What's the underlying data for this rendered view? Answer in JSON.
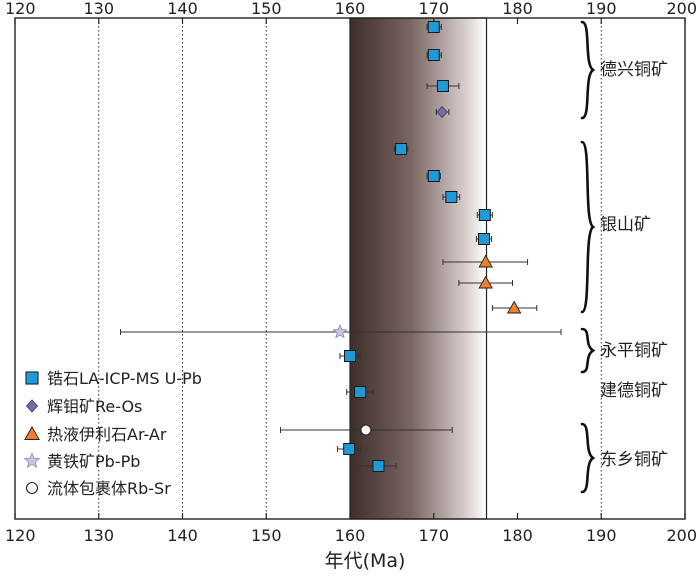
{
  "chart_data": {
    "type": "scatter",
    "title": "",
    "xlabel": "年代(Ma)",
    "ylabel": "",
    "xlim": [
      120,
      200
    ],
    "xticks": [
      120,
      130,
      140,
      150,
      160,
      170,
      180,
      190,
      200
    ],
    "grid": "vertical dotted at 130, 140, 150, 190",
    "highlight_band": {
      "x0": 160,
      "x1": 176.3
    },
    "colors": {
      "zircon": "#1f9ad6",
      "molybdenite": "#7b68a8",
      "sericite": "#f07f2d",
      "pyrite": "#c9c6e6",
      "band_dark": "#3e2e2a",
      "band_light": "#ffffff"
    },
    "legend": {
      "placement": "bottom-left",
      "entries": [
        {
          "label": "锆石LA-ICP-MS U-Pb",
          "marker": "square",
          "color": "#1f9ad6"
        },
        {
          "label": "辉钼矿Re-Os",
          "marker": "diamond",
          "color": "#7b68a8"
        },
        {
          "label": "热液伊利石Ar-Ar",
          "marker": "triangle",
          "color": "#f07f2d"
        },
        {
          "label": "黄铁矿Pb-Pb",
          "marker": "star",
          "color": "#c9c6e6"
        },
        {
          "label": "流体包裹体Rb-Sr",
          "marker": "circle",
          "color": "#ffffff"
        }
      ]
    },
    "groups": [
      {
        "label": "德兴铜矿"
      },
      {
        "label": "银山矿"
      },
      {
        "label": "永平铜矿"
      },
      {
        "label": "建德铜矿"
      },
      {
        "label": "东乡铜矿"
      }
    ],
    "points": [
      {
        "group": "德兴铜矿",
        "method": "锆石LA-ICP-MS U-Pb",
        "age": 170.0,
        "err_low": 169.2,
        "err_high": 170.9
      },
      {
        "group": "德兴铜矿",
        "method": "锆石LA-ICP-MS U-Pb",
        "age": 170.0,
        "err_low": 169.2,
        "err_high": 170.9
      },
      {
        "group": "德兴铜矿",
        "method": "锆石LA-ICP-MS U-Pb",
        "age": 171.1,
        "err_low": 169.2,
        "err_high": 173.0
      },
      {
        "group": "德兴铜矿",
        "method": "辉钼矿Re-Os",
        "age": 171.0,
        "err_low": 170.3,
        "err_high": 171.8
      },
      {
        "group": "银山矿",
        "method": "锆石LA-ICP-MS U-Pb",
        "age": 166.1,
        "err_low": 165.3,
        "err_high": 166.9
      },
      {
        "group": "银山矿",
        "method": "锆石LA-ICP-MS U-Pb",
        "age": 170.0,
        "err_low": 169.2,
        "err_high": 170.8
      },
      {
        "group": "银山矿",
        "method": "锆石LA-ICP-MS U-Pb",
        "age": 172.1,
        "err_low": 171.1,
        "err_high": 173.1
      },
      {
        "group": "银山矿",
        "method": "锆石LA-ICP-MS U-Pb",
        "age": 176.1,
        "err_low": 175.2,
        "err_high": 177.0
      },
      {
        "group": "银山矿",
        "method": "锆石LA-ICP-MS U-Pb",
        "age": 176.0,
        "err_low": 175.1,
        "err_high": 176.9
      },
      {
        "group": "银山矿",
        "method": "热液伊利石Ar-Ar",
        "age": 176.2,
        "err_low": 171.1,
        "err_high": 181.2
      },
      {
        "group": "银山矿",
        "method": "热液伊利石Ar-Ar",
        "age": 176.2,
        "err_low": 173.0,
        "err_high": 179.4
      },
      {
        "group": "银山矿",
        "method": "热液伊利石Ar-Ar",
        "age": 179.6,
        "err_low": 177.0,
        "err_high": 182.3
      },
      {
        "group": "永平铜矿",
        "method": "黄铁矿Pb-Pb",
        "age": 158.8,
        "err_low": 132.6,
        "err_high": 185.2
      },
      {
        "group": "永平铜矿",
        "method": "锆石LA-ICP-MS U-Pb",
        "age": 160.0,
        "err_low": 158.8,
        "err_high": 161.2
      },
      {
        "group": "建德铜矿",
        "method": "锆石LA-ICP-MS U-Pb",
        "age": 161.2,
        "err_low": 159.6,
        "err_high": 162.8
      },
      {
        "group": "东乡铜矿",
        "method": "流体包裹体Rb-Sr",
        "age": 161.9,
        "err_low": 151.7,
        "err_high": 172.2
      },
      {
        "group": "东乡铜矿",
        "method": "锆石LA-ICP-MS U-Pb",
        "age": 159.9,
        "err_low": 158.5,
        "err_high": 161.3
      },
      {
        "group": "东乡铜矿",
        "method": "锆石LA-ICP-MS U-Pb",
        "age": 163.4,
        "err_low": 161.2,
        "err_high": 165.5
      }
    ]
  }
}
